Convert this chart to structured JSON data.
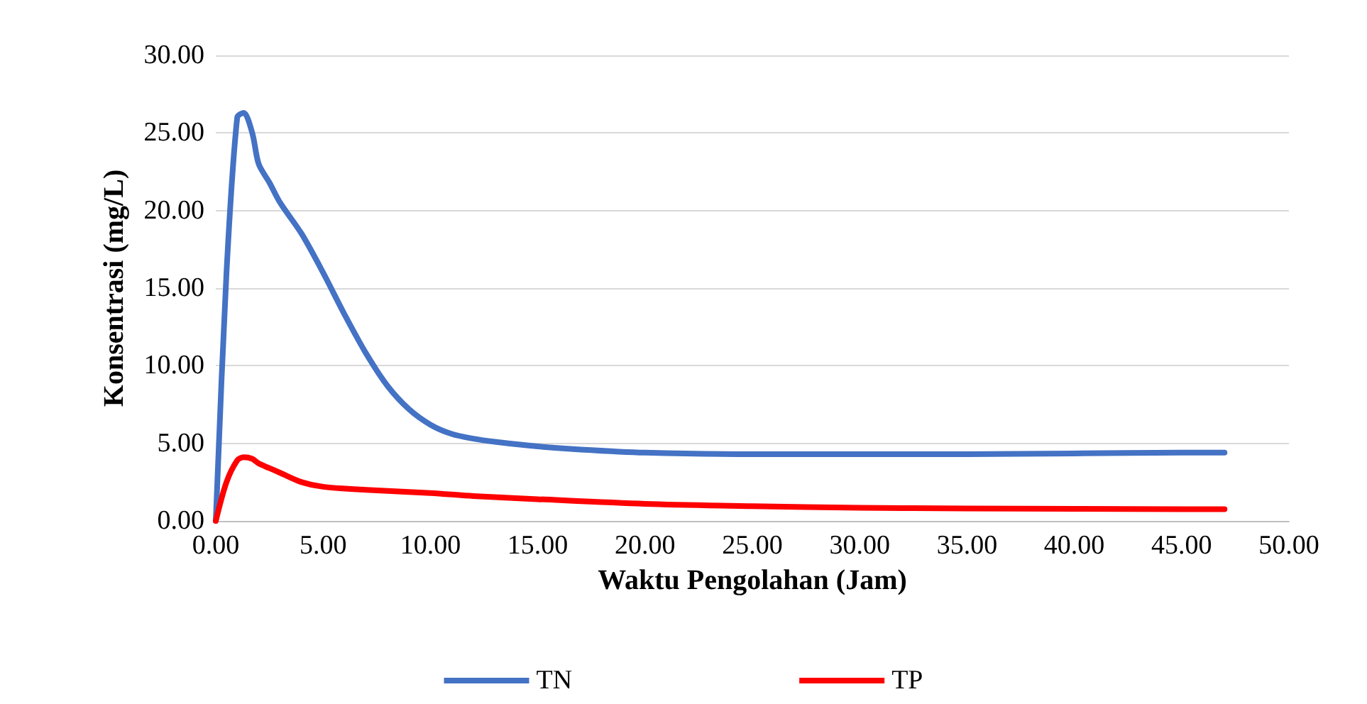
{
  "chart_data": {
    "type": "line",
    "xlabel": "Waktu Pengolahan (Jam)",
    "ylabel": "Konsentrasi (mg/L)",
    "xlim": [
      0,
      50
    ],
    "ylim": [
      0,
      30
    ],
    "xticks": [
      {
        "value": 0,
        "label": "0.00"
      },
      {
        "value": 5,
        "label": "5.00"
      },
      {
        "value": 10,
        "label": "10.00"
      },
      {
        "value": 15,
        "label": "15.00"
      },
      {
        "value": 20,
        "label": "20.00"
      },
      {
        "value": 25,
        "label": "25.00"
      },
      {
        "value": 30,
        "label": "30.00"
      },
      {
        "value": 35,
        "label": "35.00"
      },
      {
        "value": 40,
        "label": "40.00"
      },
      {
        "value": 45,
        "label": "45.00"
      },
      {
        "value": 50,
        "label": "50.00"
      }
    ],
    "yticks": [
      {
        "value": 0,
        "label": "0.00"
      },
      {
        "value": 5,
        "label": "5.00"
      },
      {
        "value": 10,
        "label": "10.00"
      },
      {
        "value": 15,
        "label": "15.00"
      },
      {
        "value": 20,
        "label": "20.00"
      },
      {
        "value": 25,
        "label": "25.00"
      },
      {
        "value": 30,
        "label": "30.00"
      }
    ],
    "grid": "y",
    "legend": "bottom",
    "marker": "none",
    "line_style": "solid",
    "series": [
      {
        "name": "TN",
        "color": "#4472c4",
        "x": [
          0,
          0.5,
          1,
          1.3,
          1.7,
          2,
          2.5,
          3,
          4,
          5,
          6,
          7,
          8,
          9,
          10,
          11,
          12,
          13,
          15,
          17,
          20,
          25,
          30,
          35,
          40,
          45,
          47
        ],
        "values": [
          0,
          16,
          26,
          26.3,
          25,
          23,
          21.8,
          20.5,
          18.5,
          16,
          13.3,
          10.8,
          8.7,
          7.2,
          6.2,
          5.6,
          5.3,
          5.1,
          4.8,
          4.6,
          4.4,
          4.3,
          4.3,
          4.3,
          4.35,
          4.4,
          4.4
        ]
      },
      {
        "name": "TP",
        "color": "#ff0000",
        "x": [
          0,
          0.5,
          1,
          1.3,
          1.7,
          2,
          2.5,
          3,
          4,
          5,
          7,
          10,
          12,
          15,
          20,
          25,
          30,
          35,
          40,
          45,
          47
        ],
        "values": [
          0,
          2.5,
          3.9,
          4.1,
          4.0,
          3.7,
          3.4,
          3.1,
          2.5,
          2.2,
          2.0,
          1.8,
          1.6,
          1.4,
          1.1,
          0.95,
          0.85,
          0.8,
          0.78,
          0.76,
          0.75
        ]
      }
    ]
  }
}
